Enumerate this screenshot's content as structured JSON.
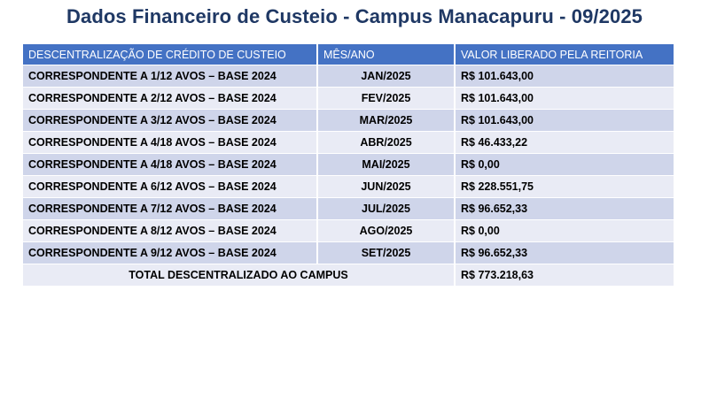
{
  "page": {
    "title": "Dados Financeiro de Custeio - Campus Manacapuru - 09/2025"
  },
  "table": {
    "headers": [
      "DESCENTRALIZAÇÃO DE CRÉDITO DE CUSTEIO",
      "MÊS/ANO",
      "VALOR LIBERADO PELA REITORIA"
    ],
    "rows": [
      {
        "descricao": "CORRESPONDENTE A 1/12 AVOS – BASE 2024",
        "mes": "JAN/2025",
        "valor": "R$ 101.643,00"
      },
      {
        "descricao": "CORRESPONDENTE A 2/12 AVOS – BASE 2024",
        "mes": "FEV/2025",
        "valor": "R$ 101.643,00"
      },
      {
        "descricao": "CORRESPONDENTE A 3/12 AVOS – BASE 2024",
        "mes": "MAR/2025",
        "valor": "R$ 101.643,00"
      },
      {
        "descricao": "CORRESPONDENTE A 4/18 AVOS – BASE 2024",
        "mes": "ABR/2025",
        "valor": "R$ 46.433,22"
      },
      {
        "descricao": "CORRESPONDENTE A 4/18 AVOS – BASE 2024",
        "mes": "MAI/2025",
        "valor": "R$ 0,00"
      },
      {
        "descricao": "CORRESPONDENTE A 6/12 AVOS – BASE 2024",
        "mes": "JUN/2025",
        "valor": "R$ 228.551,75"
      },
      {
        "descricao": "CORRESPONDENTE A 7/12 AVOS – BASE 2024",
        "mes": "JUL/2025",
        "valor": "R$ 96.652,33"
      },
      {
        "descricao": "CORRESPONDENTE A 8/12 AVOS – BASE 2024",
        "mes": "AGO/2025",
        "valor": "R$ 0,00"
      },
      {
        "descricao": "CORRESPONDENTE A 9/12 AVOS – BASE 2024",
        "mes": "SET/2025",
        "valor": "R$ 96.652,33"
      }
    ],
    "total": {
      "label": "TOTAL DESCENTRALIZADO AO CAMPUS",
      "valor": "R$ 773.218,63"
    }
  }
}
